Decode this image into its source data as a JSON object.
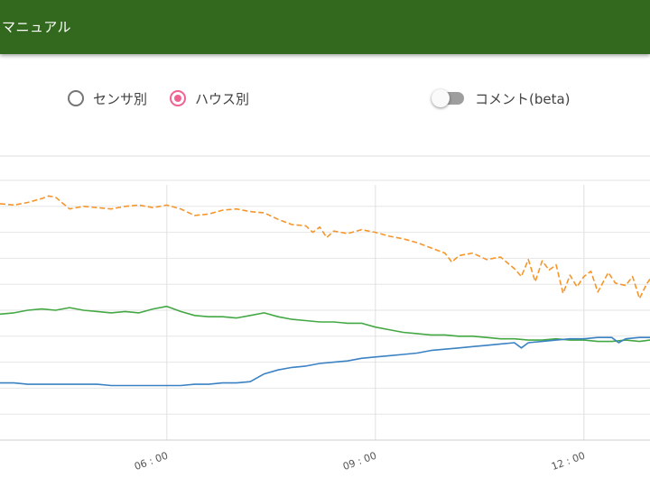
{
  "appbar": {
    "title": "マニュアル"
  },
  "view_mode": {
    "options": [
      {
        "label": "センサ別",
        "selected": false
      },
      {
        "label": "ハウス別",
        "selected": true
      }
    ]
  },
  "comment_toggle": {
    "label": "コメント(beta)",
    "on": false
  },
  "colors": {
    "appbar": "#33691e",
    "radio_selected": "#f06292",
    "series_orange": "#f5962a",
    "series_green": "#43a843",
    "series_blue": "#3a82c4"
  },
  "chart_data": {
    "type": "line",
    "x_tick_labels": [
      "06 : 00",
      "09 : 00",
      "12 : 00"
    ],
    "x_ticks_hours": [
      6,
      9,
      12
    ],
    "xlim_hours": [
      3.6,
      12.95
    ],
    "ylim": [
      0,
      10
    ],
    "grid": true,
    "legend": "none",
    "series": [
      {
        "color": "#f5962a",
        "dashed": true,
        "points": [
          [
            3.6,
            9.1
          ],
          [
            3.8,
            9.05
          ],
          [
            4.0,
            9.15
          ],
          [
            4.2,
            9.3
          ],
          [
            4.3,
            9.4
          ],
          [
            4.4,
            9.35
          ],
          [
            4.6,
            8.9
          ],
          [
            4.8,
            9.0
          ],
          [
            5.0,
            8.95
          ],
          [
            5.2,
            8.9
          ],
          [
            5.4,
            9.0
          ],
          [
            5.6,
            9.05
          ],
          [
            5.8,
            8.95
          ],
          [
            6.0,
            9.05
          ],
          [
            6.2,
            8.9
          ],
          [
            6.4,
            8.65
          ],
          [
            6.6,
            8.7
          ],
          [
            6.8,
            8.85
          ],
          [
            7.0,
            8.9
          ],
          [
            7.2,
            8.8
          ],
          [
            7.4,
            8.75
          ],
          [
            7.6,
            8.5
          ],
          [
            7.8,
            8.3
          ],
          [
            8.0,
            8.25
          ],
          [
            8.1,
            8.0
          ],
          [
            8.2,
            8.2
          ],
          [
            8.3,
            7.8
          ],
          [
            8.4,
            8.05
          ],
          [
            8.6,
            7.95
          ],
          [
            8.8,
            8.1
          ],
          [
            9.0,
            8.0
          ],
          [
            9.2,
            7.85
          ],
          [
            9.4,
            7.75
          ],
          [
            9.6,
            7.6
          ],
          [
            9.8,
            7.4
          ],
          [
            10.0,
            7.2
          ],
          [
            10.1,
            6.85
          ],
          [
            10.2,
            7.1
          ],
          [
            10.4,
            7.2
          ],
          [
            10.6,
            6.95
          ],
          [
            10.8,
            7.05
          ],
          [
            11.0,
            6.6
          ],
          [
            11.1,
            6.3
          ],
          [
            11.2,
            6.95
          ],
          [
            11.3,
            6.1
          ],
          [
            11.4,
            6.9
          ],
          [
            11.5,
            6.55
          ],
          [
            11.6,
            6.75
          ],
          [
            11.7,
            5.65
          ],
          [
            11.8,
            6.35
          ],
          [
            11.9,
            5.9
          ],
          [
            12.0,
            6.3
          ],
          [
            12.1,
            6.5
          ],
          [
            12.2,
            5.7
          ],
          [
            12.35,
            6.45
          ],
          [
            12.45,
            6.05
          ],
          [
            12.6,
            5.95
          ],
          [
            12.7,
            6.3
          ],
          [
            12.8,
            5.45
          ],
          [
            12.9,
            6.0
          ],
          [
            12.95,
            6.2
          ]
        ]
      },
      {
        "color": "#43a843",
        "dashed": false,
        "points": [
          [
            3.6,
            4.85
          ],
          [
            3.8,
            4.9
          ],
          [
            4.0,
            5.0
          ],
          [
            4.2,
            5.05
          ],
          [
            4.4,
            5.0
          ],
          [
            4.6,
            5.1
          ],
          [
            4.8,
            5.0
          ],
          [
            5.0,
            4.95
          ],
          [
            5.2,
            4.9
          ],
          [
            5.4,
            4.95
          ],
          [
            5.6,
            4.9
          ],
          [
            5.8,
            5.05
          ],
          [
            6.0,
            5.15
          ],
          [
            6.2,
            4.95
          ],
          [
            6.4,
            4.8
          ],
          [
            6.6,
            4.75
          ],
          [
            6.8,
            4.75
          ],
          [
            7.0,
            4.7
          ],
          [
            7.2,
            4.8
          ],
          [
            7.4,
            4.9
          ],
          [
            7.6,
            4.75
          ],
          [
            7.8,
            4.65
          ],
          [
            8.0,
            4.6
          ],
          [
            8.2,
            4.55
          ],
          [
            8.4,
            4.55
          ],
          [
            8.6,
            4.5
          ],
          [
            8.8,
            4.5
          ],
          [
            9.0,
            4.35
          ],
          [
            9.2,
            4.25
          ],
          [
            9.4,
            4.15
          ],
          [
            9.6,
            4.1
          ],
          [
            9.8,
            4.05
          ],
          [
            10.0,
            4.05
          ],
          [
            10.2,
            4.0
          ],
          [
            10.4,
            4.0
          ],
          [
            10.6,
            3.95
          ],
          [
            10.8,
            3.9
          ],
          [
            11.0,
            3.9
          ],
          [
            11.2,
            3.85
          ],
          [
            11.4,
            3.85
          ],
          [
            11.6,
            3.9
          ],
          [
            11.8,
            3.85
          ],
          [
            12.0,
            3.85
          ],
          [
            12.2,
            3.8
          ],
          [
            12.4,
            3.8
          ],
          [
            12.6,
            3.85
          ],
          [
            12.8,
            3.8
          ],
          [
            12.95,
            3.85
          ]
        ]
      },
      {
        "color": "#3a82c4",
        "dashed": false,
        "points": [
          [
            3.6,
            2.2
          ],
          [
            3.8,
            2.2
          ],
          [
            4.0,
            2.15
          ],
          [
            4.2,
            2.15
          ],
          [
            4.4,
            2.15
          ],
          [
            4.6,
            2.15
          ],
          [
            4.8,
            2.15
          ],
          [
            5.0,
            2.15
          ],
          [
            5.2,
            2.1
          ],
          [
            5.4,
            2.1
          ],
          [
            5.6,
            2.1
          ],
          [
            5.8,
            2.1
          ],
          [
            6.0,
            2.1
          ],
          [
            6.2,
            2.1
          ],
          [
            6.4,
            2.15
          ],
          [
            6.6,
            2.15
          ],
          [
            6.8,
            2.2
          ],
          [
            7.0,
            2.2
          ],
          [
            7.2,
            2.25
          ],
          [
            7.4,
            2.55
          ],
          [
            7.6,
            2.7
          ],
          [
            7.8,
            2.8
          ],
          [
            8.0,
            2.85
          ],
          [
            8.2,
            2.95
          ],
          [
            8.4,
            3.0
          ],
          [
            8.6,
            3.05
          ],
          [
            8.8,
            3.15
          ],
          [
            9.0,
            3.2
          ],
          [
            9.2,
            3.25
          ],
          [
            9.4,
            3.3
          ],
          [
            9.6,
            3.35
          ],
          [
            9.8,
            3.45
          ],
          [
            10.0,
            3.5
          ],
          [
            10.2,
            3.55
          ],
          [
            10.4,
            3.6
          ],
          [
            10.6,
            3.65
          ],
          [
            10.8,
            3.7
          ],
          [
            11.0,
            3.75
          ],
          [
            11.1,
            3.55
          ],
          [
            11.2,
            3.75
          ],
          [
            11.4,
            3.8
          ],
          [
            11.6,
            3.85
          ],
          [
            11.8,
            3.9
          ],
          [
            12.0,
            3.9
          ],
          [
            12.2,
            3.95
          ],
          [
            12.4,
            3.95
          ],
          [
            12.5,
            3.75
          ],
          [
            12.6,
            3.9
          ],
          [
            12.8,
            3.95
          ],
          [
            12.95,
            3.95
          ]
        ]
      }
    ]
  }
}
